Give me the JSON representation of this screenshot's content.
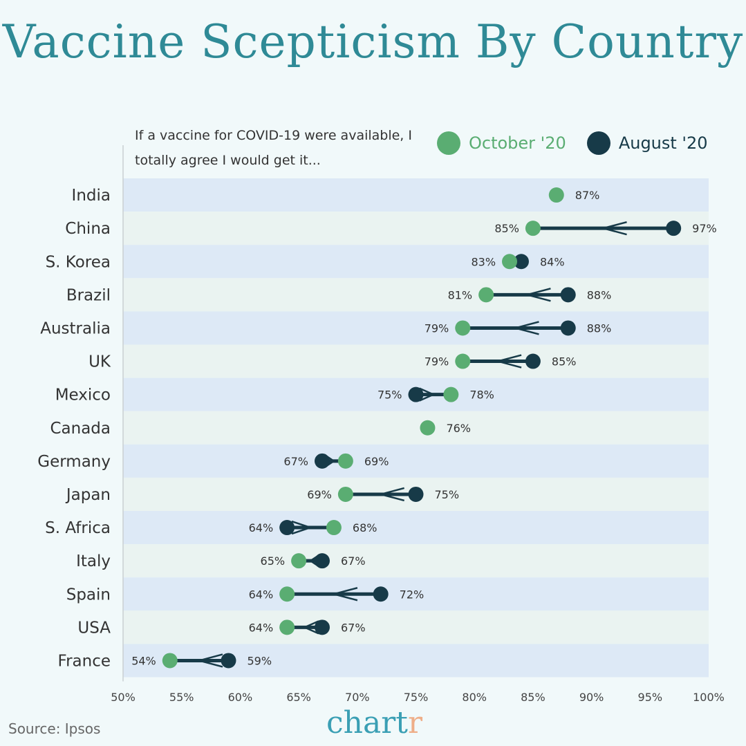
{
  "title": "Vaccine Scepticism By Country",
  "source": "Source: Ipsos",
  "logo": {
    "main": "chart",
    "accent": "r"
  },
  "colors": {
    "october": "#5aad72",
    "august": "#173a48",
    "band_a": "#dde9f6",
    "band_b": "#eaf3f1",
    "background": "#f1f9fa",
    "title": "#2f8a96"
  },
  "chart_data": {
    "type": "dumbbell",
    "subtitle": "If a vaccine for COVID-19 were available, I totally agree I would get it...",
    "legend": [
      {
        "name": "October '20",
        "color": "#5aad72"
      },
      {
        "name": "August '20",
        "color": "#173a48"
      }
    ],
    "legend_position": "top-right",
    "xlim": [
      50,
      100
    ],
    "xticks": [
      "50%",
      "55%",
      "60%",
      "65%",
      "70%",
      "75%",
      "80%",
      "85%",
      "90%",
      "95%",
      "100%"
    ],
    "categories": [
      "India",
      "China",
      "S. Korea",
      "Brazil",
      "Australia",
      "UK",
      "Mexico",
      "Canada",
      "Germany",
      "Japan",
      "S. Africa",
      "Italy",
      "Spain",
      "USA",
      "France"
    ],
    "series": [
      {
        "name": "October '20",
        "values": [
          87,
          85,
          83,
          81,
          79,
          79,
          78,
          76,
          69,
          69,
          68,
          65,
          64,
          64,
          54
        ]
      },
      {
        "name": "August '20",
        "values": [
          null,
          97,
          84,
          88,
          88,
          85,
          75,
          null,
          67,
          75,
          64,
          67,
          72,
          67,
          59
        ]
      }
    ]
  }
}
